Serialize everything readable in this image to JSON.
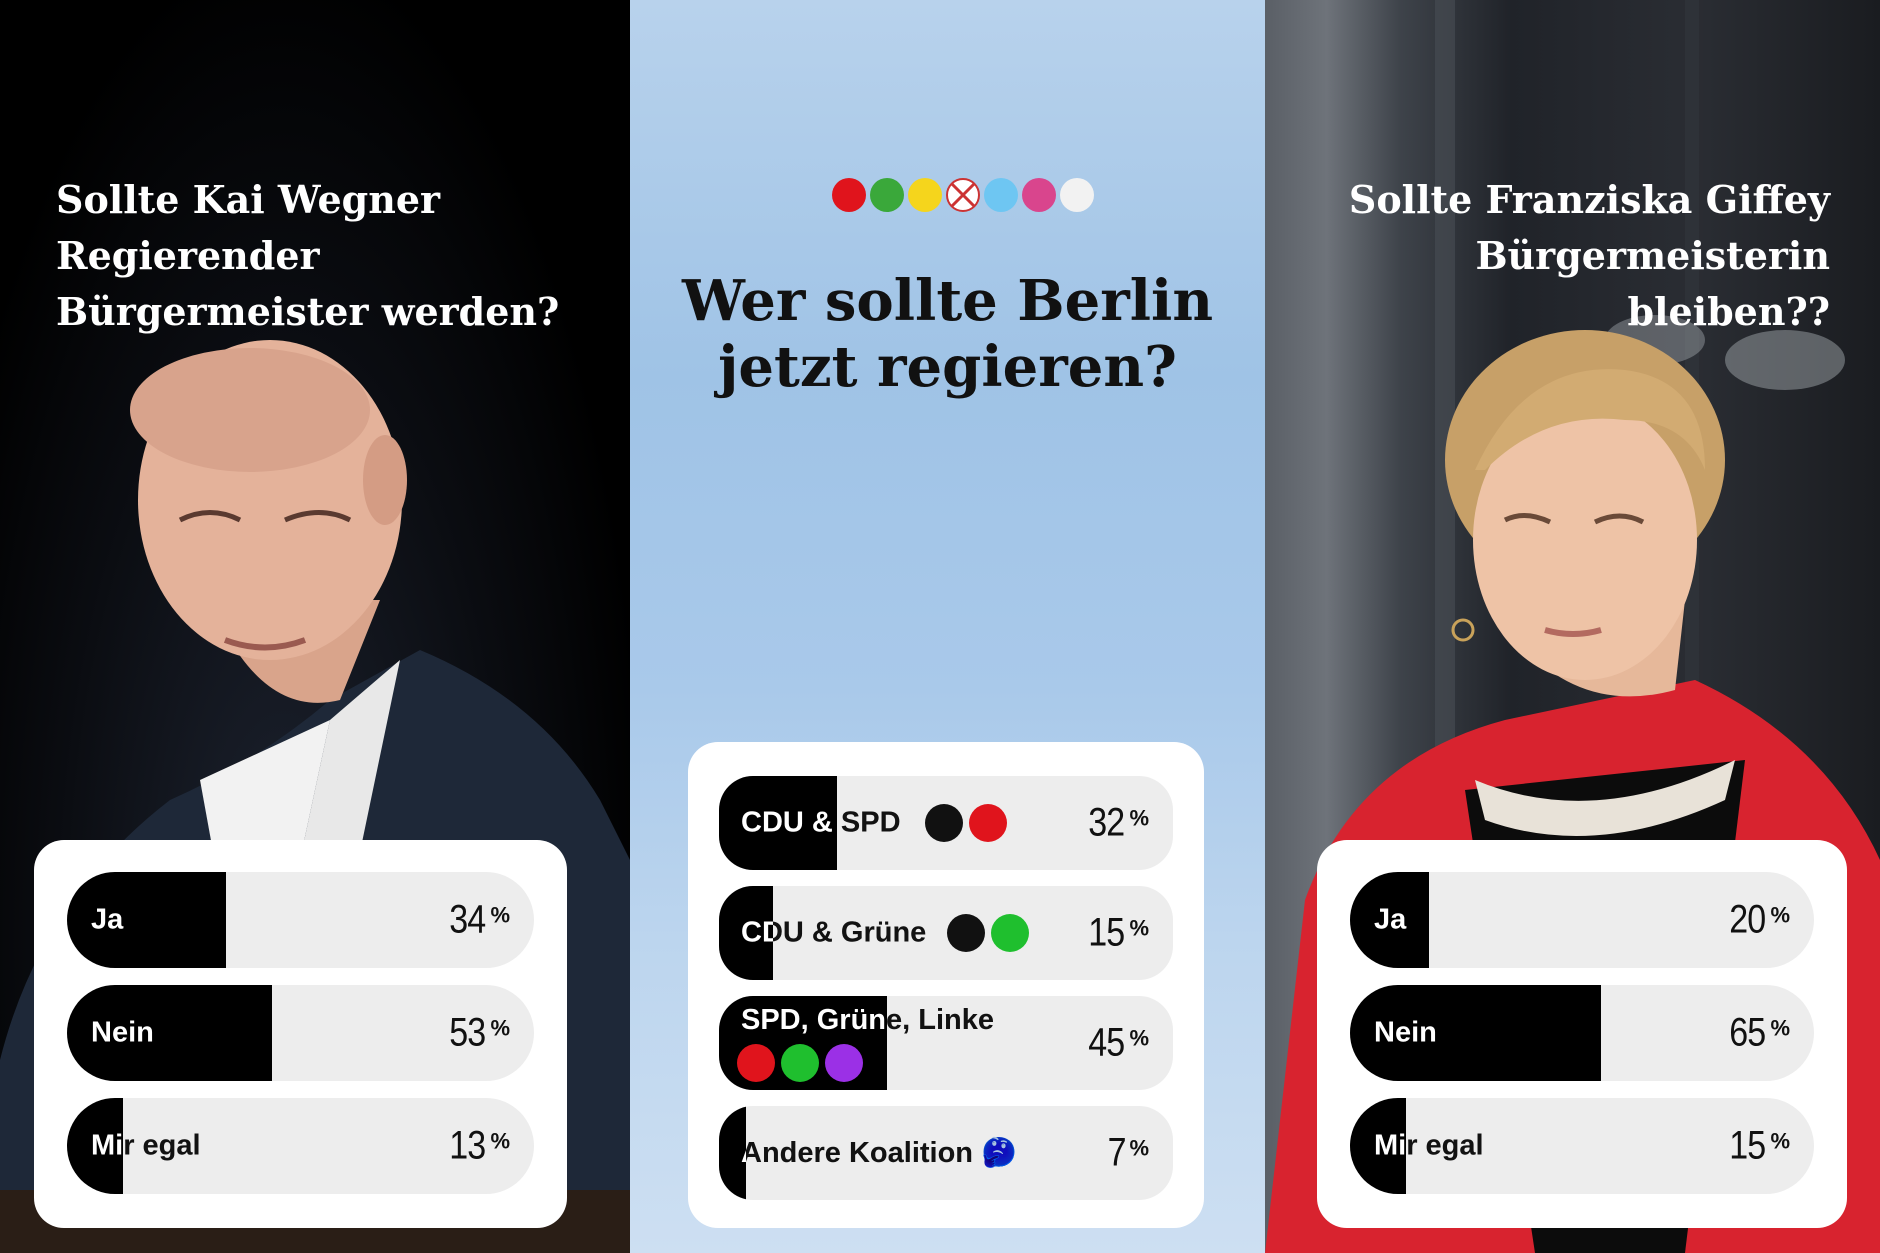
{
  "left": {
    "title_lines": [
      "Sollte Kai Wegner",
      "Regierender",
      "Bürgermeister werden?"
    ],
    "poll": [
      {
        "label": "Ja",
        "percent": 34
      },
      {
        "label": "Nein",
        "percent": 53
      },
      {
        "label": "Mir egal",
        "percent": 13
      }
    ]
  },
  "middle": {
    "title_lines": [
      "Wer sollte Berlin",
      "jetzt regieren?"
    ],
    "party_colors": [
      "#e0141c",
      "#3aa83a",
      "#f5d51c",
      "#ffffff",
      "#6ec6f2",
      "#d9458d",
      "#f2f2f2"
    ],
    "poll": [
      {
        "label": "CDU & SPD",
        "percent": 32,
        "dots": [
          "#111111",
          "#e0141c"
        ]
      },
      {
        "label": "CDU & Grüne",
        "percent": 15,
        "dots": [
          "#111111",
          "#1fbf2e"
        ]
      },
      {
        "label": "SPD, Grüne, Linke",
        "percent": 45,
        "dots": [
          "#e0141c",
          "#1fbf2e",
          "#9b30e6"
        ]
      },
      {
        "label": "Andere Koalition",
        "emoji": "🤔",
        "percent": 7
      }
    ]
  },
  "right": {
    "title_lines": [
      "Sollte Franziska Giffey",
      "Bürgermeisterin bleiben??"
    ],
    "poll": [
      {
        "label": "Ja",
        "percent": 20
      },
      {
        "label": "Nein",
        "percent": 65
      },
      {
        "label": "Mir egal",
        "percent": 15
      }
    ]
  },
  "percent_sign": "%"
}
